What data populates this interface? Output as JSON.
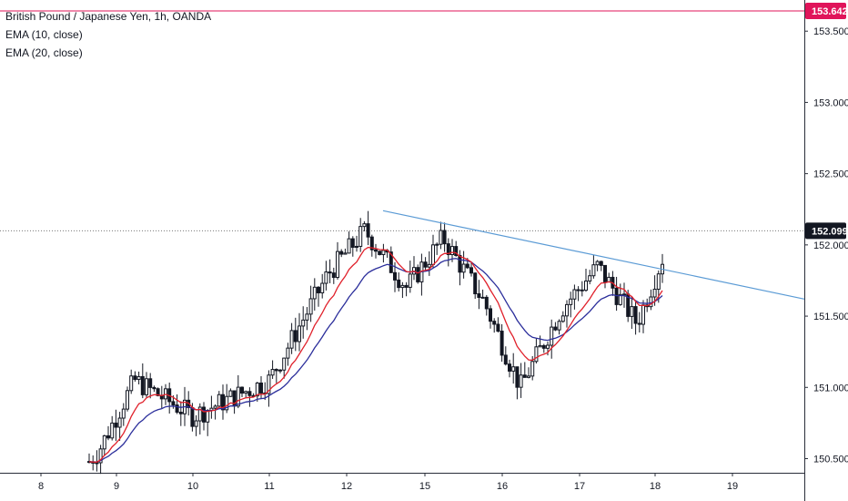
{
  "legend": {
    "symbol": "British Pound / Japanese Yen, 1h, OANDA",
    "ema10": "EMA (10, close)",
    "ema20": "EMA (20, close)"
  },
  "colors": {
    "candle_body": "#131722",
    "ema10": "#e0202a",
    "ema20": "#2b2e9b",
    "trendline": "#5b9bd5",
    "alert_line": "#e0145a",
    "current_line": "#777777"
  },
  "chart_data": {
    "type": "candlestick",
    "title": "British Pound / Japanese Yen, 1h, OANDA",
    "x_ticks": [
      "8",
      "9",
      "10",
      "11",
      "12",
      "15",
      "16",
      "17",
      "18",
      "19"
    ],
    "y_ticks": [
      "150.500",
      "151.000",
      "151.500",
      "152.000",
      "152.500",
      "153.000",
      "153.500"
    ],
    "y_tick_values": [
      150.5,
      151.0,
      151.5,
      152.0,
      152.5,
      153.0,
      153.5
    ],
    "ylim": [
      150.42,
      153.75
    ],
    "alert_price": "153.642",
    "alert_value": 153.642,
    "current_price": "152.099",
    "current_value": 152.099,
    "trendline": {
      "start": {
        "day": "12",
        "price": 152.24
      },
      "end_price": 151.62
    },
    "series_anchors": [
      {
        "day": "9",
        "price": 150.55
      },
      {
        "day": "9",
        "price": 151.05
      },
      {
        "day": "10",
        "price": 150.8
      },
      {
        "day": "11",
        "price": 151.05
      },
      {
        "day": "12",
        "price": 151.8
      },
      {
        "day": "12",
        "price": 152.1
      },
      {
        "day": "15",
        "price": 151.7
      },
      {
        "day": "15",
        "price": 152.05
      },
      {
        "day": "16",
        "price": 151.6
      },
      {
        "day": "16",
        "price": 151.0
      },
      {
        "day": "17",
        "price": 151.55
      },
      {
        "day": "17",
        "price": 151.85
      },
      {
        "day": "18",
        "price": 151.45
      },
      {
        "day": "18",
        "price": 152.1
      }
    ],
    "grid": false
  }
}
